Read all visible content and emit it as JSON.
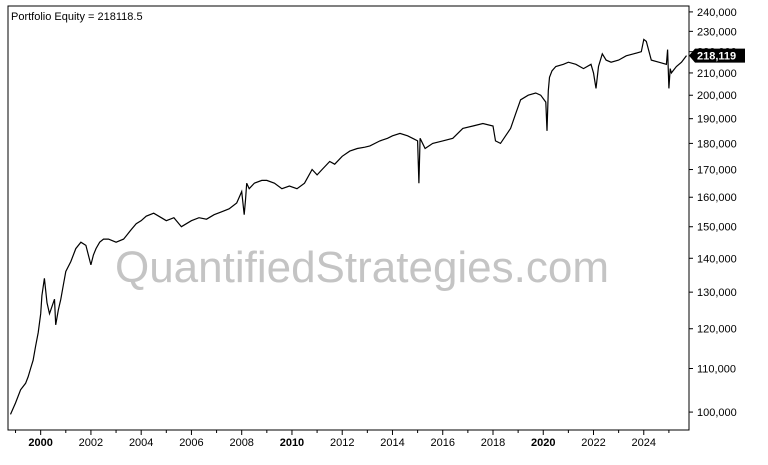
{
  "chart_data": {
    "type": "line",
    "title": "Portfolio Equity = 218118.5",
    "xlabel": "",
    "ylabel": "",
    "xlim": [
      1998.7,
      2025.8
    ],
    "ylim": [
      97000,
      241000
    ],
    "y_scale": "log",
    "y_ticks": [
      100000,
      110000,
      120000,
      130000,
      140000,
      150000,
      160000,
      170000,
      180000,
      190000,
      200000,
      210000,
      220000,
      230000,
      240000
    ],
    "y_tick_labels": [
      "100,000",
      "110,000",
      "120,000",
      "130,000",
      "140,000",
      "150,000",
      "160,000",
      "170,000",
      "180,000",
      "190,000",
      "200,000",
      "210,000",
      "220,000",
      "230,000",
      "240,000"
    ],
    "x_ticks": [
      2000,
      2002,
      2004,
      2006,
      2008,
      2010,
      2012,
      2014,
      2016,
      2018,
      2020,
      2022,
      2024
    ],
    "x_tick_labels": [
      "2000",
      "2002",
      "2004",
      "2006",
      "2008",
      "2010",
      "2012",
      "2014",
      "2016",
      "2018",
      "2020",
      "2022",
      "2024"
    ],
    "x_bold_labels": [
      "2000",
      "2010",
      "2020"
    ],
    "last_value_label": "218,119",
    "grid": false,
    "series": [
      {
        "color": "#000000",
        "x": [
          1998.8,
          1999.0,
          1999.2,
          1999.4,
          1999.5,
          1999.6,
          1999.7,
          1999.8,
          1999.9,
          2000.0,
          2000.05,
          2000.15,
          2000.25,
          2000.35,
          2000.45,
          2000.55,
          2000.6,
          2000.7,
          2000.8,
          2000.9,
          2001.0,
          2001.2,
          2001.4,
          2001.6,
          2001.8,
          2002.0,
          2002.1,
          2002.2,
          2002.35,
          2002.5,
          2002.7,
          2003.0,
          2003.3,
          2003.6,
          2003.8,
          2004.0,
          2004.2,
          2004.5,
          2004.8,
          2005.0,
          2005.3,
          2005.6,
          2005.8,
          2006.0,
          2006.3,
          2006.6,
          2006.9,
          2007.2,
          2007.5,
          2007.8,
          2008.0,
          2008.1,
          2008.15,
          2008.2,
          2008.3,
          2008.5,
          2008.8,
          2009.0,
          2009.3,
          2009.6,
          2009.9,
          2010.2,
          2010.5,
          2010.8,
          2011.0,
          2011.2,
          2011.5,
          2011.7,
          2012.0,
          2012.3,
          2012.6,
          2012.9,
          2013.1,
          2013.5,
          2013.8,
          2014.0,
          2014.3,
          2014.6,
          2014.8,
          2015.0,
          2015.05,
          2015.1,
          2015.3,
          2015.6,
          2016.0,
          2016.4,
          2016.8,
          2017.2,
          2017.6,
          2018.0,
          2018.1,
          2018.3,
          2018.5,
          2018.7,
          2018.9,
          2019.1,
          2019.4,
          2019.7,
          2019.9,
          2020.1,
          2020.15,
          2020.2,
          2020.25,
          2020.35,
          2020.5,
          2020.8,
          2021.0,
          2021.3,
          2021.6,
          2021.9,
          2022.0,
          2022.1,
          2022.2,
          2022.35,
          2022.5,
          2022.7,
          2023.0,
          2023.3,
          2023.6,
          2023.9,
          2024.0,
          2024.1,
          2024.3,
          2024.6,
          2024.9,
          2024.95,
          2025.0,
          2025.05,
          2025.1,
          2025.3,
          2025.5,
          2025.7
        ],
        "y": [
          99500,
          102000,
          105000,
          106500,
          108000,
          110000,
          112000,
          115500,
          119000,
          124000,
          129000,
          134000,
          127000,
          124000,
          126000,
          128000,
          121000,
          125000,
          128000,
          132000,
          136000,
          139000,
          143000,
          145000,
          144000,
          138000,
          141000,
          143000,
          145000,
          146000,
          146000,
          145000,
          146000,
          149000,
          151000,
          152000,
          153500,
          154500,
          153000,
          152000,
          153000,
          150000,
          151000,
          152000,
          153000,
          152500,
          154000,
          155000,
          156000,
          158000,
          162000,
          154000,
          159000,
          165000,
          163000,
          165000,
          166000,
          166000,
          165000,
          163000,
          164000,
          163000,
          165000,
          170000,
          168000,
          170000,
          173000,
          172000,
          175000,
          177000,
          178000,
          178500,
          179000,
          181000,
          182000,
          183000,
          184000,
          183000,
          182000,
          181000,
          165000,
          182000,
          178000,
          180000,
          181000,
          182000,
          186000,
          187000,
          188000,
          187000,
          181000,
          180000,
          183000,
          186000,
          192000,
          198000,
          200000,
          201000,
          200000,
          197000,
          185000,
          202000,
          208000,
          211000,
          213000,
          214000,
          215000,
          214000,
          212000,
          214000,
          210000,
          203000,
          213000,
          219000,
          216000,
          215000,
          216000,
          218000,
          219000,
          220000,
          226000,
          225000,
          216000,
          215000,
          214000,
          221000,
          203000,
          212000,
          210000,
          213000,
          215000,
          218119
        ]
      }
    ]
  },
  "watermark_text": "QuantifiedStrategies.com"
}
